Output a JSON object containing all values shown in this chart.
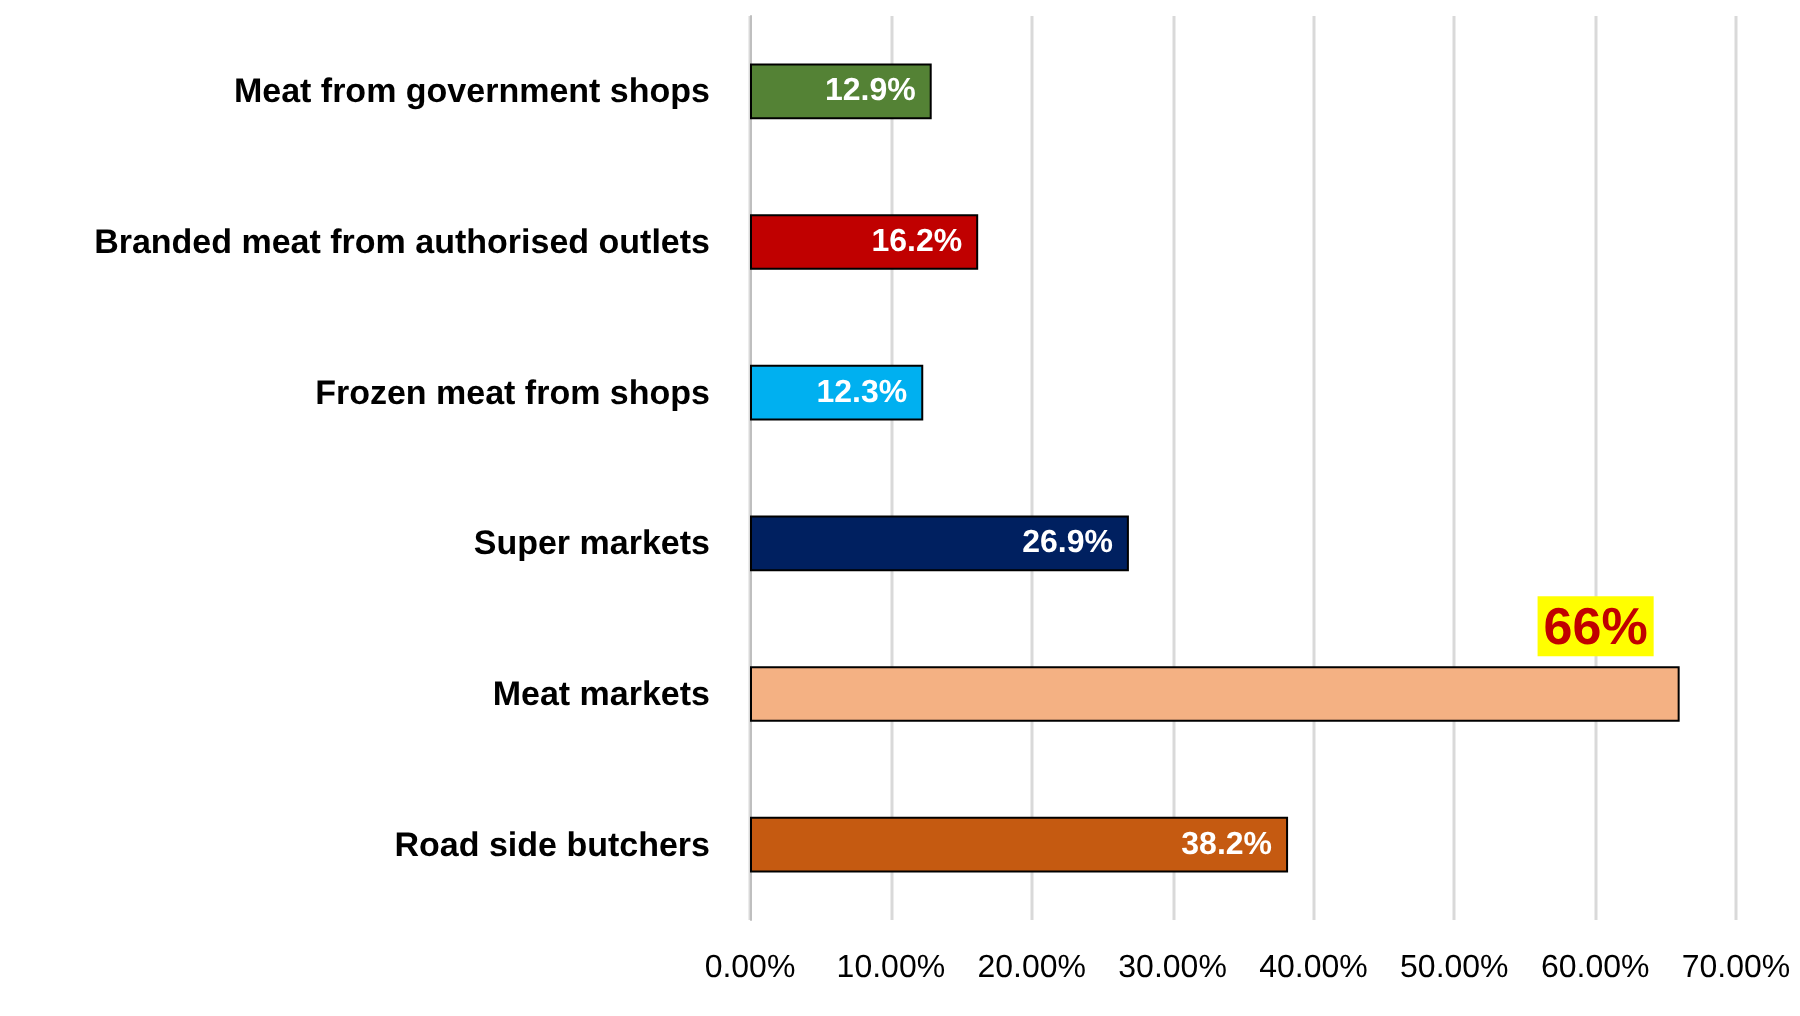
{
  "chart_data": {
    "type": "bar",
    "orientation": "horizontal",
    "categories": [
      "Meat from government shops",
      "Branded meat from authorised outlets",
      "Frozen meat from shops",
      "Super markets",
      "Meat markets",
      "Road side butchers"
    ],
    "values": [
      12.9,
      16.2,
      12.3,
      26.9,
      66,
      38.2
    ],
    "colors": [
      "#548235",
      "#c00000",
      "#00b0f0",
      "#002060",
      "#f4b183",
      "#c55a11"
    ],
    "value_labels": [
      "12.9%",
      "16.2%",
      "12.3%",
      "26.9%",
      "66%",
      "38.2%"
    ],
    "xlim": [
      0,
      70
    ],
    "xticks": [
      {
        "value": 0,
        "label": "0.00%"
      },
      {
        "value": 10,
        "label": "10.00%"
      },
      {
        "value": 20,
        "label": "20.00%"
      },
      {
        "value": 30,
        "label": "30.00%"
      },
      {
        "value": 40,
        "label": "40.00%"
      },
      {
        "value": 50,
        "label": "50.00%"
      },
      {
        "value": 60,
        "label": "60.00%"
      },
      {
        "value": 70,
        "label": "70.00%"
      }
    ],
    "grid": "x"
  }
}
